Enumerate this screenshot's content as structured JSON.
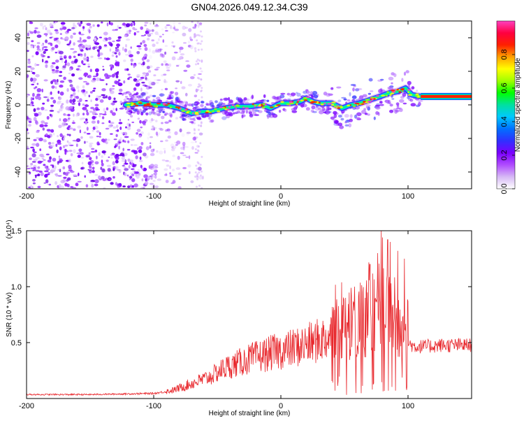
{
  "title": "GN04.2026.049.12.34.C39",
  "chart_data": [
    {
      "type": "heatmap",
      "xlabel": "Height of straight line (km)",
      "ylabel": "Frequency (Hz)",
      "xlim": [
        -200,
        150
      ],
      "ylim": [
        -50,
        50
      ],
      "xticks": [
        -200,
        -100,
        0,
        100
      ],
      "yticks": [
        -40,
        -20,
        0,
        20,
        40
      ],
      "colorbar": {
        "label": "Normalized spectral amplitude",
        "range": [
          0,
          1
        ],
        "ticks": [
          "0.0",
          "0.2",
          "0.4",
          "0.6",
          "0.8"
        ],
        "colors": [
          "#ffffff",
          "#d6b8f5",
          "#b04cff",
          "#7a00ff",
          "#3030ff",
          "#0070ff",
          "#00c8ff",
          "#00e0a0",
          "#00ff00",
          "#a0ff00",
          "#ffff00",
          "#ffa000",
          "#ff2000",
          "#ff0040",
          "#ff40c0"
        ]
      },
      "ridge": {
        "x": [
          -122,
          -110,
          -100,
          -90,
          -80,
          -70,
          -62,
          -55,
          -45,
          -35,
          -25,
          -15,
          -8,
          0,
          8,
          15,
          20,
          25,
          30,
          40,
          48,
          55,
          62,
          70,
          78,
          85,
          92,
          98,
          103,
          110,
          150
        ],
        "freq": [
          0,
          1,
          0,
          0,
          -2,
          -5,
          -4,
          -4,
          -2,
          -1,
          -1,
          0,
          -2,
          1,
          1,
          2,
          4,
          2,
          1,
          1,
          -2,
          0,
          1,
          3,
          5,
          7,
          8,
          10,
          6,
          5,
          5
        ]
      },
      "noise_region_x": [
        -200,
        -60
      ]
    },
    {
      "type": "line",
      "xlabel": "Height of straight line (km)",
      "ylabel": "SNR (10 * v/v)",
      "y_multiplier": "(x10⁴)",
      "xlim": [
        -200,
        150
      ],
      "ylim": [
        0,
        15000
      ],
      "xticks": [
        -200,
        -100,
        0,
        100
      ],
      "yticks": [
        "0.5",
        "1.0",
        "1.5"
      ],
      "yticks_values": [
        5000,
        10000,
        15000
      ],
      "color": "#e8282d",
      "envelope": {
        "x": [
          -200,
          -150,
          -100,
          -85,
          -75,
          -65,
          -55,
          -45,
          -35,
          -25,
          -15,
          -5,
          5,
          15,
          25,
          35,
          45,
          55,
          65,
          72,
          78,
          83,
          88,
          93,
          98,
          105,
          115,
          125,
          135,
          150
        ],
        "y": [
          350,
          350,
          450,
          700,
          1100,
          1500,
          1900,
          2600,
          3000,
          3400,
          3700,
          4000,
          4200,
          4500,
          4800,
          5200,
          5700,
          6200,
          6700,
          7300,
          8000,
          7500,
          6800,
          5800,
          5000,
          4600,
          4600,
          4700,
          4700,
          4700
        ]
      },
      "peaks": [
        {
          "x": 51,
          "y": 9000
        },
        {
          "x": 58,
          "y": 10000
        },
        {
          "x": 70,
          "y": 12000
        },
        {
          "x": 76,
          "y": 13000
        },
        {
          "x": 79,
          "y": 15000
        },
        {
          "x": 80,
          "y": 14400
        },
        {
          "x": 84,
          "y": 14200
        },
        {
          "x": 86,
          "y": 14000
        },
        {
          "x": 92,
          "y": 13200
        },
        {
          "x": 97,
          "y": 12500
        }
      ]
    }
  ]
}
